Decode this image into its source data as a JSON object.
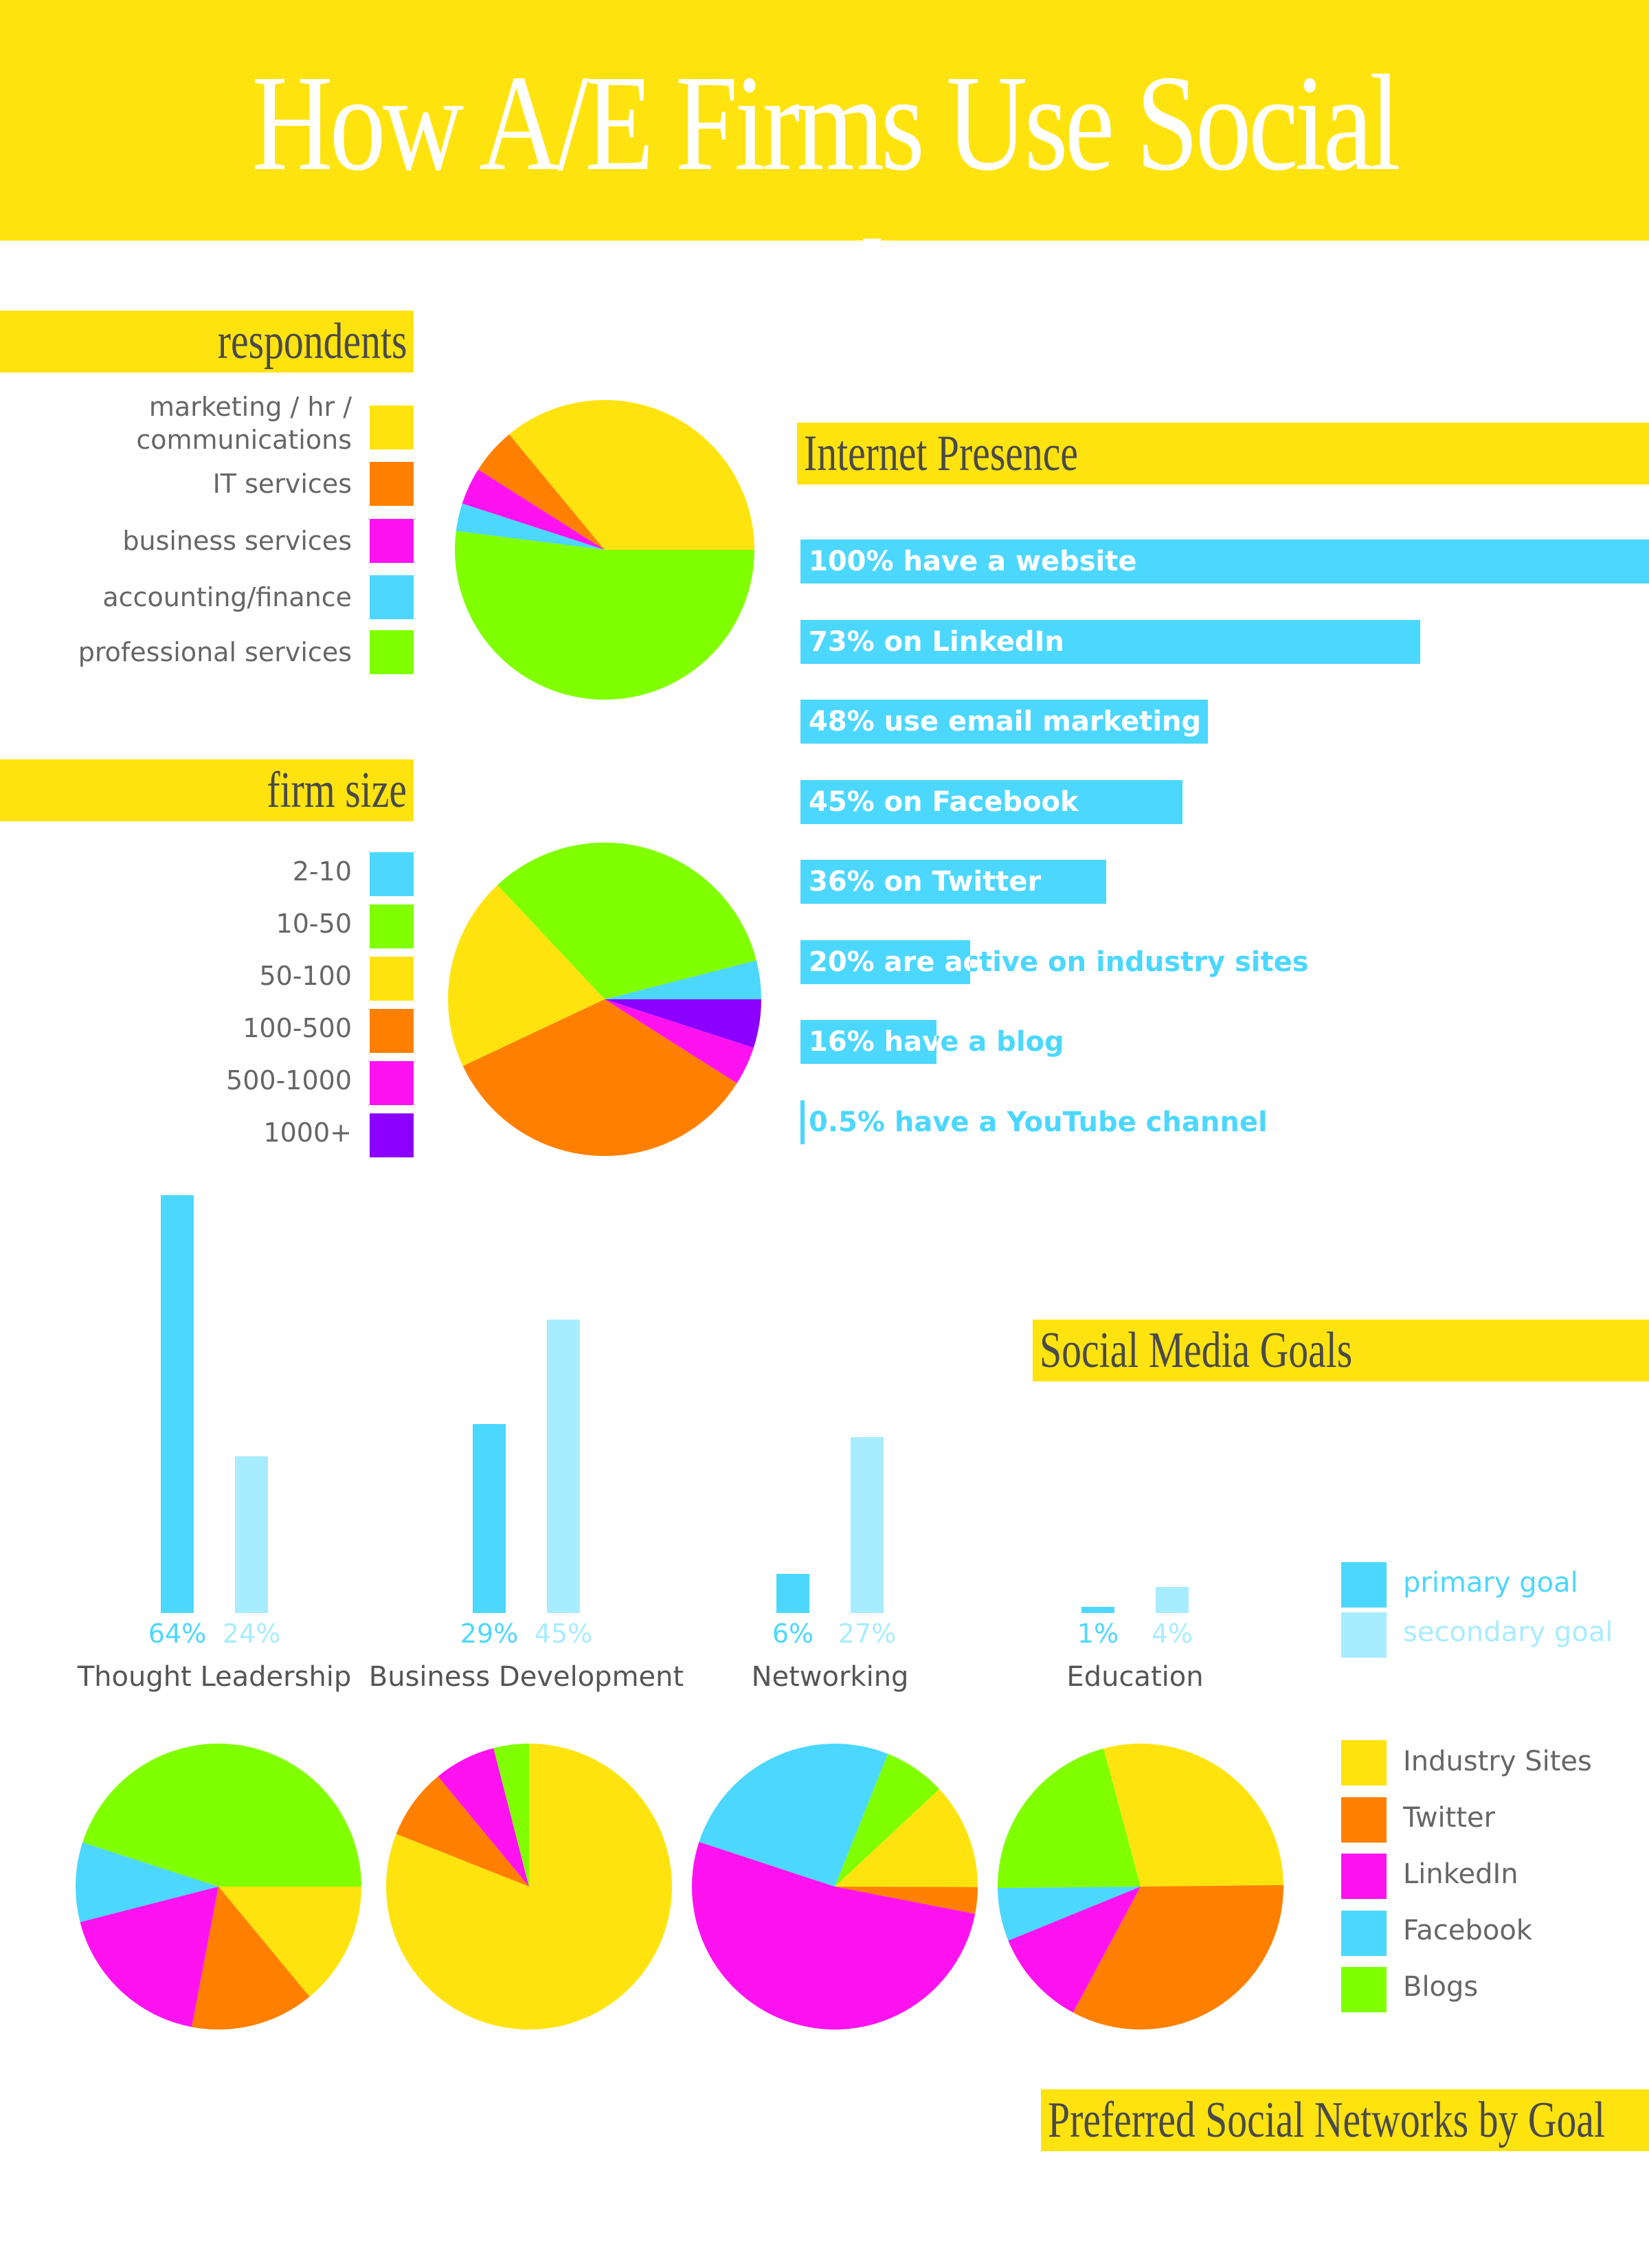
{
  "title": "How A/E Firms Use Social Media",
  "sections": {
    "respondents": "respondents",
    "firm_size": "firm size",
    "internet_presence": "Internet Presence",
    "social_media_goals": "Social Media Goals",
    "preferred_networks": "Preferred  Social Networks by Goal"
  },
  "colors": {
    "yellow": "#FFE30F",
    "orange": "#FF8000",
    "magenta": "#FF12F0",
    "cyan": "#4CD7FF",
    "green": "#80FF00",
    "purple": "#8B00FF",
    "light_cyan": "#A8ECFF"
  },
  "chart_data": [
    {
      "type": "pie",
      "id": "respondents",
      "title": "respondents",
      "labels": [
        "marketing / hr / communications",
        "IT services",
        "business services",
        "accounting/finance",
        "professional services"
      ],
      "values": [
        36,
        5,
        4,
        3,
        52
      ],
      "colors": [
        "#FFE30F",
        "#FF8000",
        "#FF12F0",
        "#4CD7FF",
        "#80FF00"
      ]
    },
    {
      "type": "pie",
      "id": "firm_size",
      "title": "firm size",
      "labels": [
        "2-10",
        "10-50",
        "50-100",
        "100-500",
        "500-1000",
        "1000+"
      ],
      "values": [
        4,
        33,
        20,
        34,
        4,
        5
      ],
      "colors": [
        "#4CD7FF",
        "#80FF00",
        "#FFE30F",
        "#FF8000",
        "#FF12F0",
        "#8B00FF"
      ]
    },
    {
      "type": "bar",
      "id": "internet_presence",
      "title": "Internet Presence",
      "orientation": "horizontal",
      "categories": [
        "100% have a website",
        "73% on LinkedIn",
        "48% use email marketing",
        "45% on Facebook",
        "36% on Twitter",
        "20% are active on industry sites",
        "16% have a blog",
        "0.5% have a YouTube channel"
      ],
      "values": [
        100,
        73,
        48,
        45,
        36,
        20,
        16,
        0.5
      ],
      "xlim": [
        0,
        100
      ],
      "color": "#4CD7FF"
    },
    {
      "type": "bar",
      "id": "social_media_goals",
      "title": "Social Media Goals",
      "categories": [
        "Thought Leadership",
        "Business Development",
        "Networking",
        "Education"
      ],
      "series": [
        {
          "name": "primary goal",
          "values": [
            64,
            29,
            6,
            1
          ],
          "labels": [
            "64%",
            "29%",
            "6%",
            "1%"
          ],
          "color": "#4CD7FF"
        },
        {
          "name": "secondary goal",
          "values": [
            24,
            45,
            27,
            4
          ],
          "labels": [
            "24%",
            "45%",
            "27%",
            "4%"
          ],
          "color": "#A8ECFF"
        }
      ],
      "ylim": [
        0,
        64
      ]
    },
    {
      "type": "pie",
      "id": "networks_thought_leadership",
      "category": "Thought Leadership",
      "labels": [
        "Industry Sites",
        "Twitter",
        "LinkedIn",
        "Facebook",
        "Blogs"
      ],
      "values": [
        14,
        14,
        18,
        9,
        45
      ],
      "colors": [
        "#FFE30F",
        "#FF8000",
        "#FF12F0",
        "#4CD7FF",
        "#80FF00"
      ]
    },
    {
      "type": "pie",
      "id": "networks_business_development",
      "category": "Business Development",
      "labels": [
        "Industry Sites",
        "Twitter",
        "LinkedIn",
        "Facebook",
        "Blogs"
      ],
      "values": [
        81,
        8,
        7,
        0,
        4
      ],
      "colors": [
        "#FFE30F",
        "#FF8000",
        "#FF12F0",
        "#4CD7FF",
        "#80FF00"
      ]
    },
    {
      "type": "pie",
      "id": "networks_networking",
      "category": "Networking",
      "labels": [
        "Industry Sites",
        "Twitter",
        "LinkedIn",
        "Facebook",
        "Blogs"
      ],
      "values": [
        12,
        3,
        52,
        26,
        7
      ],
      "colors": [
        "#FFE30F",
        "#FF8000",
        "#FF12F0",
        "#4CD7FF",
        "#80FF00"
      ]
    },
    {
      "type": "pie",
      "id": "networks_education",
      "category": "Education",
      "labels": [
        "Industry Sites",
        "Twitter",
        "LinkedIn",
        "Facebook",
        "Blogs"
      ],
      "values": [
        29,
        33,
        11,
        6,
        21
      ],
      "colors": [
        "#FFE30F",
        "#FF8000",
        "#FF12F0",
        "#4CD7FF",
        "#80FF00"
      ]
    }
  ],
  "network_legend": [
    "Industry Sites",
    "Twitter",
    "LinkedIn",
    "Facebook",
    "Blogs"
  ],
  "goal_legend": [
    "primary goal",
    "secondary goal"
  ]
}
